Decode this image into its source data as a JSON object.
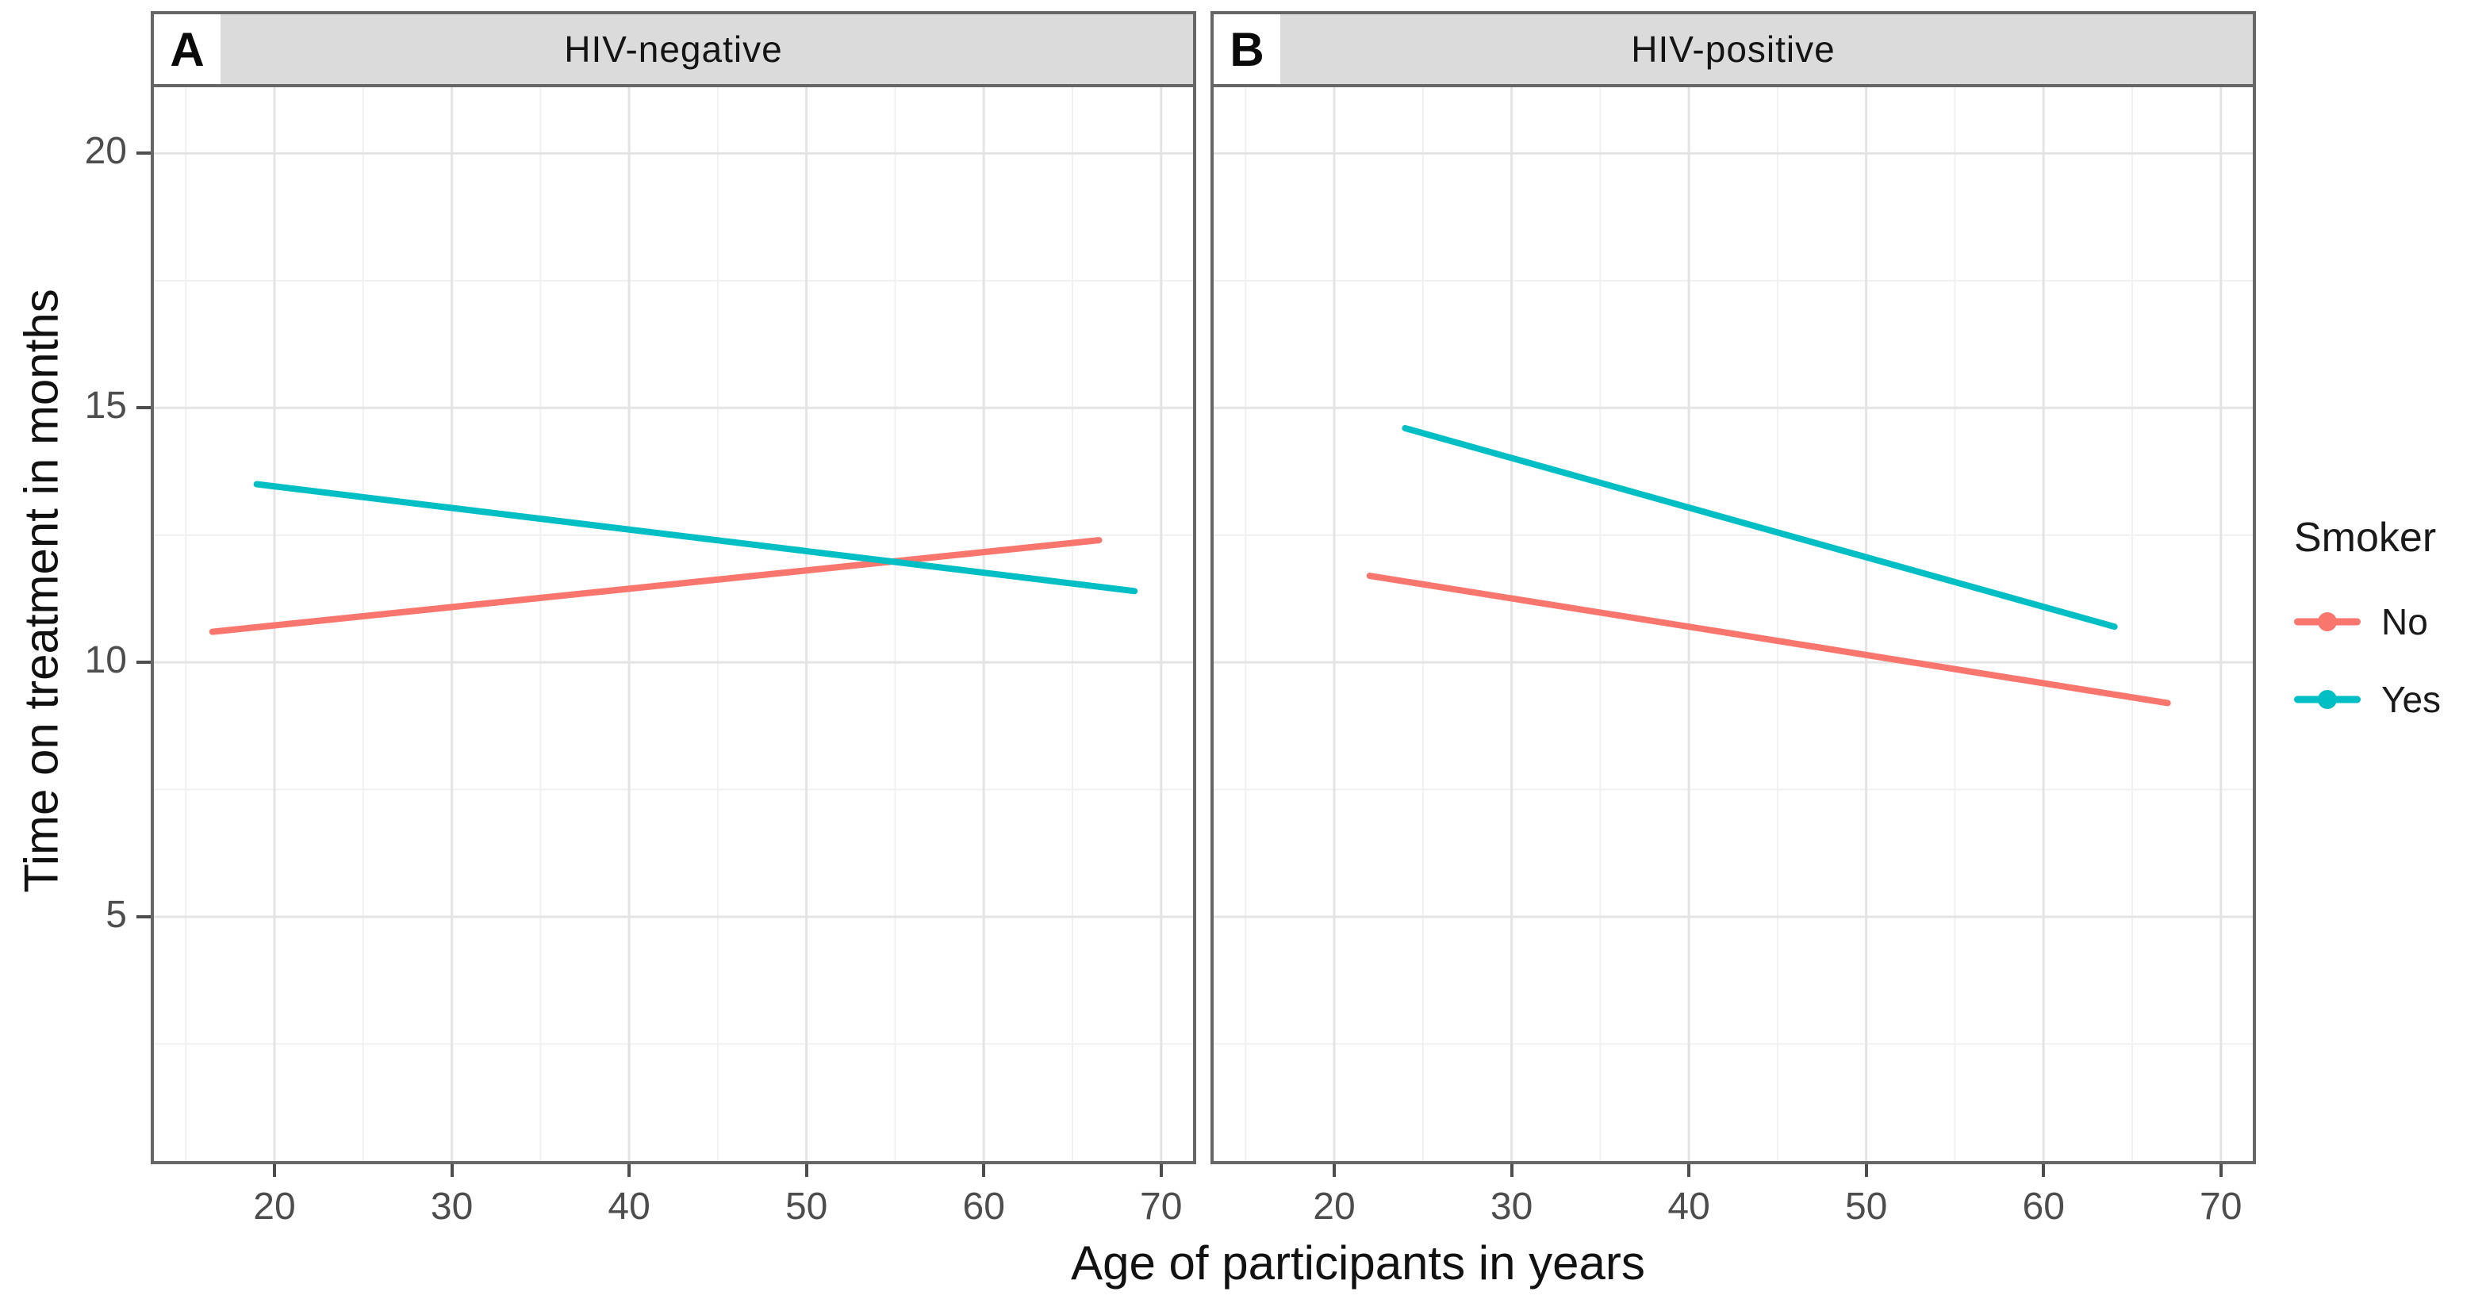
{
  "chart_data": {
    "type": "line",
    "title": "",
    "xlabel": "Age of participants in years",
    "ylabel": "Time on treatment in months",
    "grid": true,
    "legend": {
      "title": "Smoker",
      "position": "right",
      "items": [
        {
          "label": "No",
          "color": "#F8766D"
        },
        {
          "label": "Yes",
          "color": "#00BFC4"
        }
      ]
    },
    "x_ticks": [
      20,
      30,
      40,
      50,
      60,
      70
    ],
    "y_ticks": [
      5,
      10,
      15,
      20
    ],
    "x_minor_ticks": [
      15,
      25,
      35,
      45,
      55,
      65
    ],
    "y_minor_ticks": [
      2.5,
      7.5,
      12.5,
      17.5
    ],
    "xlim": [
      13.2,
      71.8
    ],
    "ylim": [
      0.2,
      21.3
    ],
    "facets": [
      {
        "tag": "A",
        "label": "HIV-negative",
        "series": [
          {
            "name": "No",
            "color": "#F8766D",
            "points": [
              [
                16.5,
                10.6
              ],
              [
                66.5,
                12.4
              ]
            ]
          },
          {
            "name": "Yes",
            "color": "#00BFC4",
            "points": [
              [
                19.0,
                13.5
              ],
              [
                68.5,
                11.4
              ]
            ]
          }
        ]
      },
      {
        "tag": "B",
        "label": "HIV-positive",
        "series": [
          {
            "name": "No",
            "color": "#F8766D",
            "points": [
              [
                22.0,
                11.7
              ],
              [
                67.0,
                9.2
              ]
            ]
          },
          {
            "name": "Yes",
            "color": "#00BFC4",
            "points": [
              [
                24.0,
                14.6
              ],
              [
                64.0,
                10.7
              ]
            ]
          }
        ]
      }
    ]
  },
  "colors": {
    "strip_bg": "#DBDBDB",
    "panel_border": "#666666",
    "grid_major": "#E4E4E4",
    "grid_minor": "#F1F1F1",
    "tick_text": "#4D4D4D",
    "axis_title_text": "#111111",
    "series_no": "#F8766D",
    "series_yes": "#00BFC4"
  }
}
